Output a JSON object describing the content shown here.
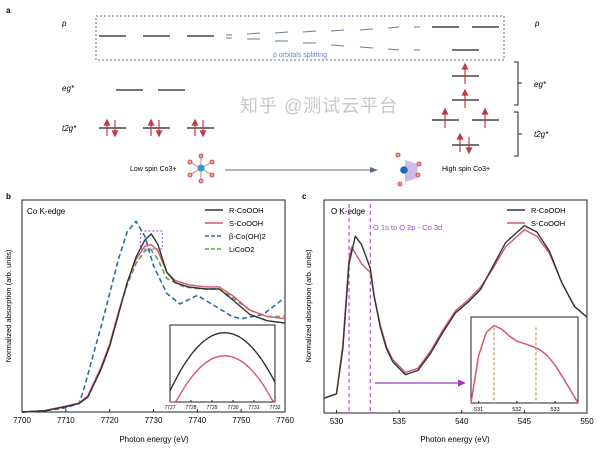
{
  "panel_a": {
    "label": "a",
    "p_label": "p",
    "eg_label": "eg*",
    "t2g_label": "t2g*",
    "splitting_label": "p orbitals splitting",
    "low_spin_label": "Low spin Co3+",
    "high_spin_label": "High spin Co3+",
    "colors": {
      "arrow": "#c0393f",
      "box": "#5a6c8a",
      "text_blue": "#6a8bb0"
    }
  },
  "chart_data": [
    {
      "type": "line",
      "panel_label": "b",
      "annotation": "Co K-edge",
      "xlabel": "Photon energy (eV)",
      "ylabel": "Normalized absorption (arb. units)",
      "xlim": [
        7700,
        7760
      ],
      "ylim": [
        0,
        1
      ],
      "xticks": [
        "7700",
        "7710",
        "7720",
        "7730",
        "7740",
        "7750",
        "7760"
      ],
      "legend_position": "top-right",
      "series": [
        {
          "name": "R-CoOOH",
          "color": "#333333",
          "dash": false,
          "x": [
            7700,
            7705,
            7710,
            7713,
            7715,
            7718,
            7720,
            7722,
            7724,
            7726,
            7728,
            7729.5,
            7731,
            7733,
            7735,
            7738,
            7742,
            7745,
            7748,
            7752,
            7756,
            7760
          ],
          "y": [
            0,
            0.005,
            0.025,
            0.04,
            0.07,
            0.2,
            0.31,
            0.46,
            0.61,
            0.73,
            0.81,
            0.84,
            0.79,
            0.66,
            0.61,
            0.59,
            0.58,
            0.58,
            0.53,
            0.46,
            0.43,
            0.42
          ]
        },
        {
          "name": "S-CoOOH",
          "color": "#d9566b",
          "dash": false,
          "x": [
            7700,
            7705,
            7710,
            7713,
            7715,
            7718,
            7720,
            7722,
            7724,
            7726,
            7728,
            7729.5,
            7731,
            7733,
            7735,
            7738,
            7742,
            7745,
            7748,
            7752,
            7756,
            7760
          ],
          "y": [
            0,
            0.006,
            0.028,
            0.043,
            0.075,
            0.21,
            0.32,
            0.47,
            0.61,
            0.72,
            0.78,
            0.79,
            0.76,
            0.66,
            0.62,
            0.6,
            0.59,
            0.59,
            0.55,
            0.48,
            0.45,
            0.44
          ]
        },
        {
          "name": "β-Co(OH)2",
          "color": "#2a6fa0",
          "dash": true,
          "x": [
            7700,
            7705,
            7710,
            7713,
            7714,
            7716,
            7718,
            7720,
            7722,
            7724,
            7726,
            7728,
            7730,
            7733,
            7736,
            7740,
            7744,
            7748,
            7750,
            7755,
            7760
          ],
          "y": [
            0,
            0.005,
            0.02,
            0.04,
            0.1,
            0.25,
            0.4,
            0.56,
            0.72,
            0.85,
            0.9,
            0.83,
            0.69,
            0.56,
            0.51,
            0.55,
            0.5,
            0.45,
            0.44,
            0.46,
            0.54
          ]
        },
        {
          "name": "LiCoO2",
          "color": "#5aa05a",
          "dash": true,
          "x": [
            7700,
            7705,
            7710,
            7713,
            7715,
            7718,
            7720,
            7722,
            7724,
            7726,
            7728,
            7729.3,
            7731,
            7733,
            7737,
            7741,
            7745,
            7748,
            7752,
            7756,
            7760
          ],
          "y": [
            0,
            0.005,
            0.025,
            0.04,
            0.075,
            0.21,
            0.32,
            0.47,
            0.6,
            0.7,
            0.76,
            0.77,
            0.72,
            0.63,
            0.59,
            0.58,
            0.58,
            0.54,
            0.48,
            0.45,
            0.45
          ]
        }
      ],
      "inset": {
        "xlim": [
          7727,
          7732
        ],
        "xticks": [
          "7727",
          "7728",
          "7729",
          "7730",
          "7731",
          "7732"
        ],
        "series": [
          {
            "name": "R-CoOOH",
            "peak_x": 7729.6,
            "peak_y": 0.9
          },
          {
            "name": "S-CoOOH",
            "peak_x": 7729.6,
            "peak_y": 0.6
          }
        ]
      }
    },
    {
      "type": "line",
      "panel_label": "c",
      "annotation": "O K-edge",
      "transition_label": "O 1s to O 2p - Co 3d",
      "xlabel": "Photon energy (eV)",
      "ylabel": "Normalized absorption (arb. units)",
      "xlim": [
        529,
        550
      ],
      "ylim": [
        0,
        1
      ],
      "xticks": [
        "530",
        "535",
        "540",
        "545",
        "550"
      ],
      "legend_position": "top-right",
      "marker_lines_x": [
        531,
        532.7
      ],
      "series": [
        {
          "name": "R-CoOOH",
          "color": "#333333",
          "x": [
            529,
            530,
            530.5,
            531,
            531.5,
            532,
            532.7,
            533,
            533.5,
            534,
            534.5,
            535.5,
            536.5,
            537.5,
            538.5,
            539.5,
            540.5,
            541.5,
            542.5,
            543.5,
            545,
            546,
            547,
            548,
            549,
            550
          ],
          "y": [
            0.07,
            0.09,
            0.3,
            0.7,
            0.83,
            0.79,
            0.68,
            0.55,
            0.4,
            0.3,
            0.24,
            0.18,
            0.2,
            0.28,
            0.38,
            0.47,
            0.52,
            0.58,
            0.69,
            0.8,
            0.88,
            0.85,
            0.76,
            0.61,
            0.5,
            0.45
          ]
        },
        {
          "name": "S-CoOOH",
          "color": "#d9566b",
          "x": [
            529,
            530,
            530.5,
            531,
            531.2,
            532,
            532.7,
            533,
            533.5,
            534,
            534.5,
            535.5,
            536.5,
            537.5,
            538.5,
            539.5,
            540.5,
            541.5,
            542.5,
            543.5,
            545,
            546,
            547,
            548,
            549,
            550
          ],
          "y": [
            0.07,
            0.09,
            0.32,
            0.72,
            0.78,
            0.7,
            0.66,
            0.55,
            0.41,
            0.31,
            0.25,
            0.19,
            0.21,
            0.29,
            0.39,
            0.48,
            0.53,
            0.59,
            0.68,
            0.78,
            0.86,
            0.83,
            0.75,
            0.61,
            0.5,
            0.45
          ]
        }
      ],
      "inset": {
        "xlim": [
          530.8,
          533.6
        ],
        "xticks": [
          "531",
          "532",
          "533"
        ],
        "marker_lines_x": [
          531.4,
          532.5
        ],
        "x": [
          530.8,
          531,
          531.2,
          531.4,
          531.6,
          531.8,
          532,
          532.2,
          532.4,
          532.6,
          532.8,
          533,
          533.2,
          533.4,
          533.6
        ],
        "y": [
          0.0,
          0.55,
          0.82,
          0.9,
          0.86,
          0.78,
          0.72,
          0.69,
          0.66,
          0.62,
          0.55,
          0.44,
          0.3,
          0.15,
          0.0
        ]
      }
    }
  ],
  "watermark": "知乎 @测试云平台"
}
